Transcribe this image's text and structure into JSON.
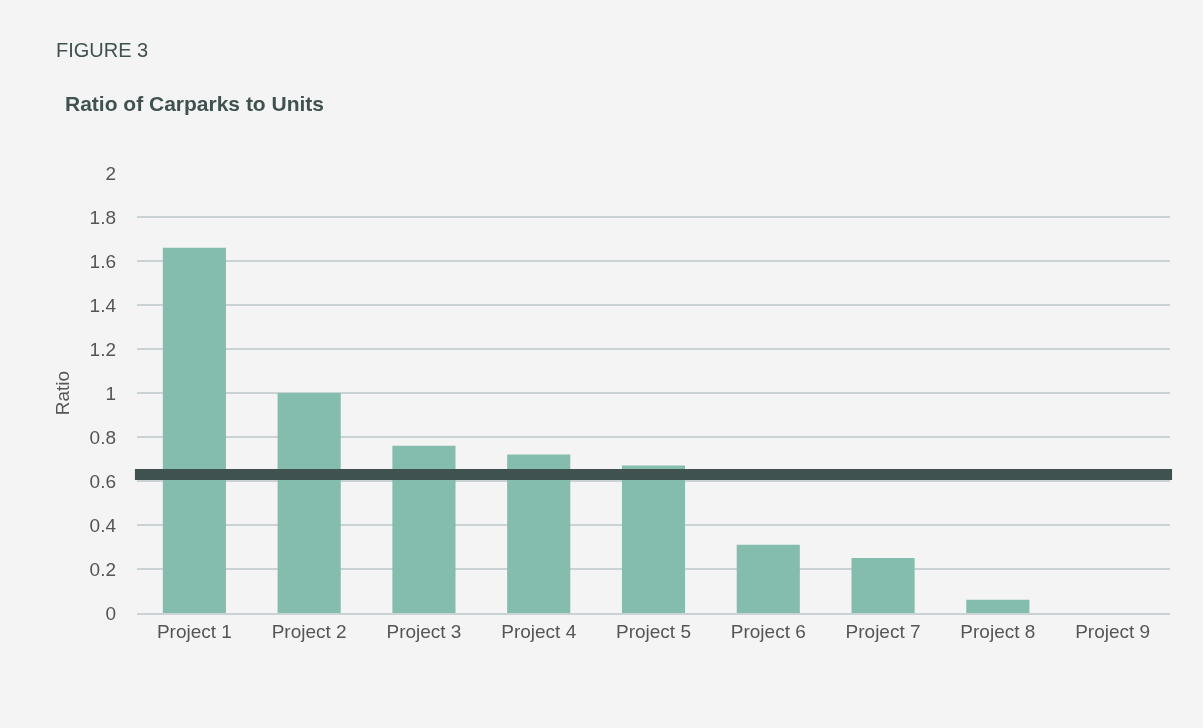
{
  "chart_data": {
    "type": "bar",
    "subtitle": "FIGURE 3",
    "title": "Ratio of Carparks to Units",
    "ylabel": "Ratio",
    "categories": [
      "Project 1",
      "Project 2",
      "Project 3",
      "Project 4",
      "Project 5",
      "Project 6",
      "Project 7",
      "Project 8",
      "Project 9"
    ],
    "values": [
      1.66,
      1.0,
      0.76,
      0.72,
      0.67,
      0.31,
      0.25,
      0.06,
      0
    ],
    "color": "#84bcad",
    "ylim": [
      0,
      2
    ],
    "yticks": [
      0,
      0.2,
      0.4,
      0.6,
      0.8,
      1,
      1.2,
      1.4,
      1.6,
      1.8,
      2
    ],
    "grid": "y",
    "legend": false,
    "ref_lines": [
      {
        "axis": "y",
        "value": 0.63,
        "color": "#3f5250",
        "line_style": "solid"
      }
    ]
  }
}
